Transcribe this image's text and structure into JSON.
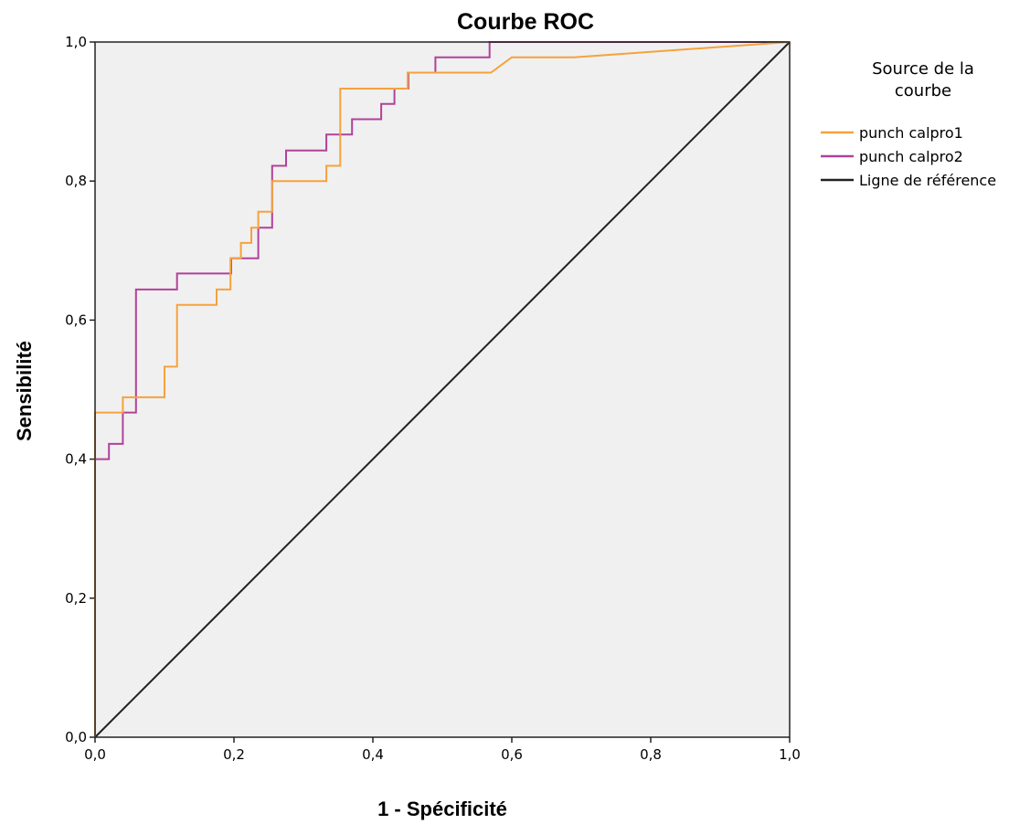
{
  "chart_data": {
    "type": "line",
    "title": "Courbe ROC",
    "xlabel": "1 - Spécificité",
    "ylabel": "Sensibilité",
    "xlim": [
      0,
      1
    ],
    "ylim": [
      0,
      1
    ],
    "xticks": [
      0,
      0.2,
      0.4,
      0.6,
      0.8,
      1.0
    ],
    "yticks": [
      0,
      0.2,
      0.4,
      0.6,
      0.8,
      1.0
    ],
    "xtick_labels": [
      "0,0",
      "0,2",
      "0,4",
      "0,6",
      "0,8",
      "1,0"
    ],
    "ytick_labels": [
      "0,0",
      "0,2",
      "0,4",
      "0,6",
      "0,8",
      "1,0"
    ],
    "grid": false,
    "plot_background": "#f0f0f0",
    "legend": {
      "title_lines": [
        "Source de la",
        "courbe"
      ],
      "position": "right"
    },
    "series": [
      {
        "name": "punch calpro1",
        "color": "#f5a23c",
        "x": [
          0,
          0,
          0.04,
          0.04,
          0.1,
          0.1,
          0.118,
          0.118,
          0.175,
          0.175,
          0.195,
          0.195,
          0.21,
          0.21,
          0.225,
          0.225,
          0.235,
          0.235,
          0.255,
          0.255,
          0.333,
          0.333,
          0.353,
          0.353,
          0.45,
          0.45,
          0.57,
          0.6,
          0.69,
          1.0
        ],
        "y": [
          0,
          0.467,
          0.467,
          0.489,
          0.489,
          0.533,
          0.533,
          0.622,
          0.622,
          0.644,
          0.644,
          0.689,
          0.689,
          0.711,
          0.711,
          0.733,
          0.733,
          0.756,
          0.756,
          0.8,
          0.8,
          0.822,
          0.822,
          0.933,
          0.933,
          0.956,
          0.956,
          0.978,
          0.978,
          1.0
        ]
      },
      {
        "name": "punch calpro2",
        "color": "#b0429a",
        "x": [
          0,
          0,
          0.02,
          0.02,
          0.04,
          0.04,
          0.059,
          0.059,
          0.118,
          0.118,
          0.196,
          0.196,
          0.215,
          0.215,
          0.235,
          0.235,
          0.255,
          0.255,
          0.275,
          0.275,
          0.333,
          0.333,
          0.37,
          0.37,
          0.412,
          0.412,
          0.431,
          0.431,
          0.451,
          0.451,
          0.47,
          0.47,
          0.49,
          0.49,
          0.51,
          0.51,
          0.568,
          0.568,
          1.0
        ],
        "y": [
          0,
          0.4,
          0.4,
          0.422,
          0.422,
          0.467,
          0.467,
          0.644,
          0.644,
          0.667,
          0.667,
          0.689,
          0.689,
          0.689,
          0.689,
          0.733,
          0.733,
          0.822,
          0.822,
          0.844,
          0.844,
          0.867,
          0.867,
          0.889,
          0.889,
          0.911,
          0.911,
          0.933,
          0.933,
          0.956,
          0.956,
          0.956,
          0.956,
          0.978,
          0.978,
          0.978,
          0.978,
          1.0,
          1.0
        ]
      },
      {
        "name": "Ligne de référence",
        "color": "#222222",
        "x": [
          0,
          1
        ],
        "y": [
          0,
          1
        ]
      }
    ]
  }
}
